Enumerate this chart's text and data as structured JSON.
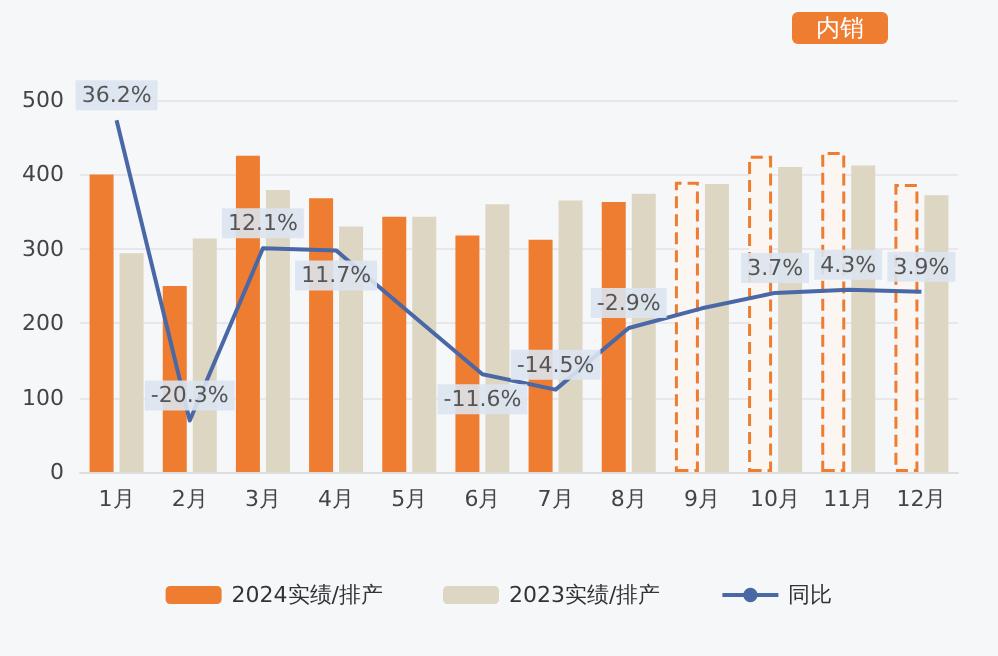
{
  "chart_data": {
    "type": "bar",
    "title": "内销",
    "categories": [
      "1月",
      "2月",
      "3月",
      "4月",
      "5月",
      "6月",
      "7月",
      "8月",
      "9月",
      "10月",
      "11月",
      "12月"
    ],
    "series": [
      {
        "name": "2024实绩/排产",
        "color": "#ee7d31",
        "colors": [
          "#ee7d31",
          "#ee7d31",
          "#ee7d31",
          "#ee7d31",
          "#ee7d31",
          "#ee7d31",
          "#ee7d31",
          "#ee7d31",
          "#fbf6f1",
          "#fbf6f1",
          "#fbf6f1",
          "#fbf6f1"
        ],
        "values": [
          400,
          250,
          425,
          368,
          343,
          318,
          312,
          363,
          390,
          425,
          430,
          387
        ]
      },
      {
        "name": "2023实绩/排产",
        "color": "#dcd6c3",
        "values": [
          294,
          314,
          379,
          330,
          343,
          360,
          365,
          374,
          387,
          410,
          412,
          372
        ]
      },
      {
        "name": "同比",
        "type": "line",
        "axis": "y2",
        "color": "#4a68a6",
        "values": [
          36.2,
          -20.3,
          12.1,
          11.7,
          0.0,
          -11.6,
          -14.5,
          -2.9,
          0.8,
          3.7,
          4.3,
          3.9
        ],
        "value_labels": [
          "36.2%",
          "-20.3%",
          "12.1%",
          "11.7%",
          null,
          "-11.6%",
          "-14.5%",
          "-2.9%",
          null,
          "3.7%",
          "4.3%",
          "3.9%"
        ]
      }
    ],
    "ylim": [
      0,
      500
    ],
    "yticks": [
      0,
      100,
      200,
      300,
      400,
      500
    ],
    "grid": "y",
    "legend": "bottom",
    "marker": "none"
  }
}
